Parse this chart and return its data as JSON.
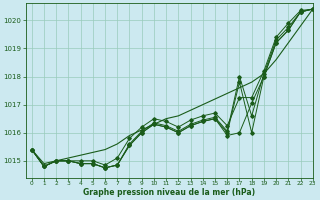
{
  "title": "Graphe pression niveau de la mer (hPa)",
  "bg_color": "#cce9f0",
  "line_color": "#1a5c1a",
  "grid_color": "#99ccbb",
  "xlim": [
    -0.5,
    23
  ],
  "ylim": [
    1014.4,
    1020.6
  ],
  "yticks": [
    1015,
    1016,
    1017,
    1018,
    1019,
    1020
  ],
  "xticks": [
    0,
    1,
    2,
    3,
    4,
    5,
    6,
    7,
    8,
    9,
    10,
    11,
    12,
    13,
    14,
    15,
    16,
    17,
    18,
    19,
    20,
    21,
    22,
    23
  ],
  "smooth_line": [
    1015.4,
    1014.9,
    1015.0,
    1015.1,
    1015.2,
    1015.3,
    1015.4,
    1015.6,
    1015.9,
    1016.1,
    1016.3,
    1016.5,
    1016.6,
    1016.8,
    1017.0,
    1017.2,
    1017.4,
    1017.6,
    1017.8,
    1018.1,
    1018.6,
    1019.2,
    1019.8,
    1020.4
  ],
  "line_a": [
    1015.4,
    1014.8,
    1015.0,
    1015.0,
    1014.9,
    1014.9,
    1014.75,
    1014.85,
    1015.55,
    1016.0,
    1016.3,
    1016.2,
    1016.0,
    1016.25,
    1016.4,
    1016.5,
    1015.9,
    1016.0,
    1017.05,
    1018.0,
    1019.2,
    1019.65,
    1020.3,
    1020.4
  ],
  "line_b": [
    1015.4,
    1014.8,
    1015.0,
    1015.0,
    1014.9,
    1014.9,
    1014.75,
    1014.85,
    1015.55,
    1016.0,
    1016.3,
    1016.2,
    1016.0,
    1016.25,
    1016.4,
    1016.5,
    1016.0,
    1017.8,
    1016.0,
    1018.0,
    1019.2,
    1019.65,
    1020.3,
    1020.4
  ],
  "line_c": [
    1015.4,
    1014.8,
    1015.0,
    1015.0,
    1014.9,
    1014.9,
    1014.75,
    1014.85,
    1015.6,
    1016.05,
    1016.35,
    1016.25,
    1016.05,
    1016.3,
    1016.45,
    1016.55,
    1016.05,
    1018.0,
    1016.6,
    1018.1,
    1019.3,
    1019.75,
    1020.3,
    1020.4
  ],
  "line_d": [
    1015.4,
    1014.8,
    1015.0,
    1015.0,
    1015.0,
    1015.0,
    1014.85,
    1015.1,
    1015.8,
    1016.2,
    1016.5,
    1016.4,
    1016.2,
    1016.45,
    1016.6,
    1016.7,
    1016.25,
    1017.25,
    1017.25,
    1018.2,
    1019.4,
    1019.9,
    1020.35,
    1020.4
  ]
}
